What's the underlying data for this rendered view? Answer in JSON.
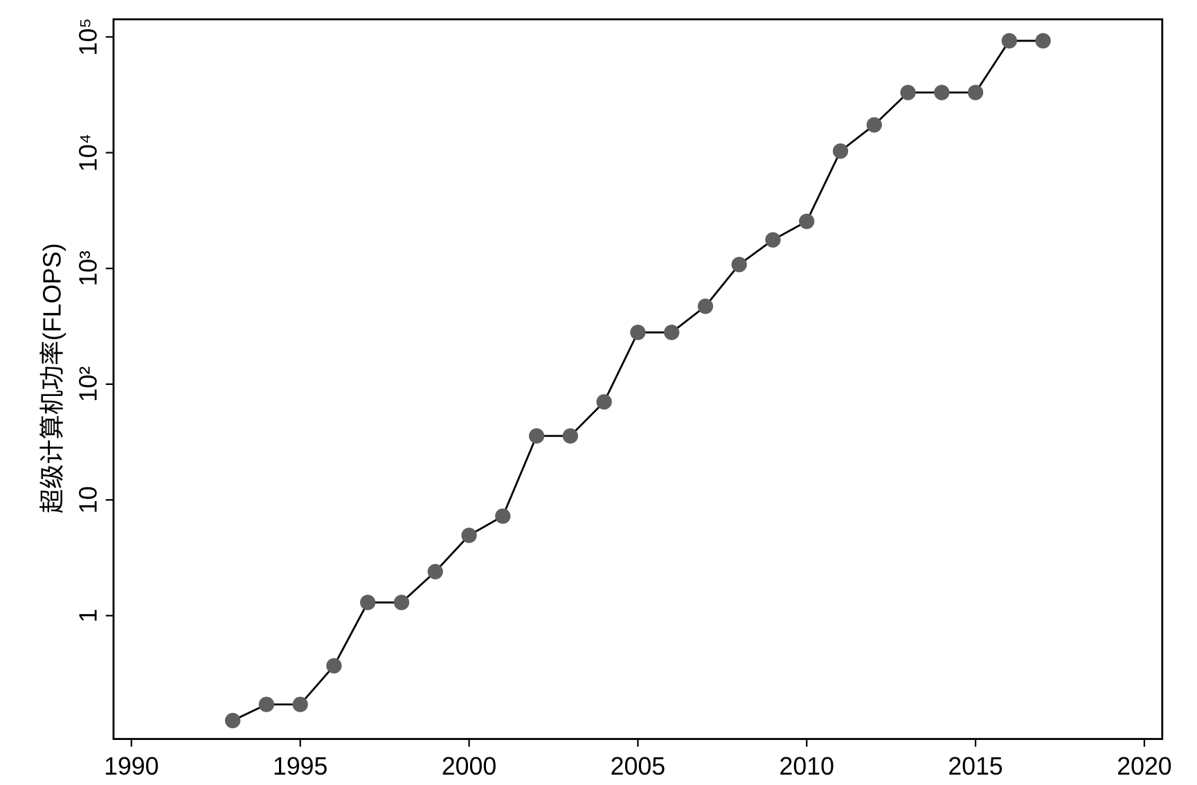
{
  "chart_data": {
    "type": "line",
    "ylabel": "超级计算机功率(FLOPS)",
    "x": [
      1993,
      1994,
      1995,
      1996,
      1997,
      1998,
      1999,
      2000,
      2001,
      2002,
      2003,
      2004,
      2005,
      2006,
      2007,
      2008,
      2009,
      2010,
      2011,
      2012,
      2013,
      2014,
      2015,
      2016,
      2017
    ],
    "series": [
      {
        "color": "#5f5f5f",
        "values": [
          0.124,
          0.171,
          0.171,
          0.369,
          1.3,
          1.3,
          2.4,
          4.94,
          7.24,
          35.7,
          35.7,
          70.3,
          280,
          280,
          471,
          1080,
          1764,
          2550,
          10320,
          17380,
          33100,
          33100,
          33100,
          92600,
          92600
        ]
      }
    ],
    "xlim": [
      1989.47,
      2020.53
    ],
    "xticks": [
      1990,
      1995,
      2000,
      2005,
      2010,
      2015,
      2020
    ],
    "ylim": [
      0.086,
      142000
    ],
    "yticks": [
      1,
      10,
      {
        "value": 100,
        "label": "10²"
      },
      {
        "value": 1000,
        "label": "10³"
      },
      {
        "value": 10000,
        "label": "10⁴"
      },
      {
        "value": 100000,
        "label": "10⁵"
      }
    ],
    "log_y": true,
    "grid": false
  }
}
